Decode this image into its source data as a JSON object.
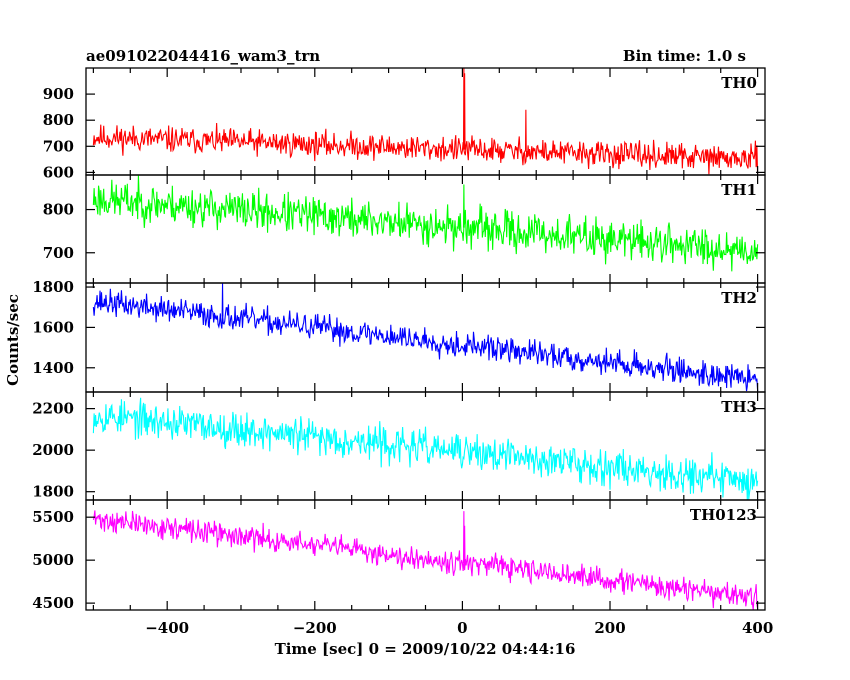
{
  "chart_data": {
    "type": "line",
    "title_left": "ae091022044416_wam3_trn",
    "title_right": "Bin time: 1.0 s",
    "xlabel": "Time [sec] 0 = 2009/10/22 04:44:16",
    "ylabel": "Counts/sec",
    "xlim": [
      -510,
      410
    ],
    "xticks": [
      -400,
      -200,
      0,
      200,
      400
    ],
    "grid": false,
    "panels": [
      {
        "name": "TH0",
        "color": "#ff0000",
        "ylim": [
          590,
          1000
        ],
        "yticks": [
          600,
          700,
          800,
          900
        ],
        "start": 735,
        "end": 650,
        "noise": 35,
        "seed": 11,
        "spikes": [
          {
            "x": 2,
            "y": 1000
          },
          {
            "x": 3,
            "y": 980
          },
          {
            "x": 86,
            "y": 840
          }
        ]
      },
      {
        "name": "TH1",
        "color": "#00ff00",
        "ylim": [
          630,
          880
        ],
        "yticks": [
          700,
          800
        ],
        "start": 825,
        "end": 705,
        "noise": 32,
        "seed": 23,
        "spikes": [
          {
            "x": 2,
            "y": 858
          }
        ]
      },
      {
        "name": "TH2",
        "color": "#0000ff",
        "ylim": [
          1280,
          1820
        ],
        "yticks": [
          1400,
          1600,
          1800
        ],
        "start": 1730,
        "end": 1340,
        "noise": 45,
        "seed": 37,
        "spikes": [
          {
            "x": -325,
            "y": 1820
          }
        ]
      },
      {
        "name": "TH3",
        "color": "#00ffff",
        "ylim": [
          1760,
          2280
        ],
        "yticks": [
          1800,
          2000,
          2200
        ],
        "start": 2170,
        "end": 1850,
        "noise": 60,
        "seed": 53,
        "spikes": []
      },
      {
        "name": "TH0123",
        "color": "#ff00ff",
        "ylim": [
          4420,
          5700
        ],
        "yticks": [
          4500,
          5000,
          5500
        ],
        "start": 5480,
        "end": 4560,
        "noise": 95,
        "seed": 71,
        "spikes": [
          {
            "x": 2,
            "y": 5570
          },
          {
            "x": 3,
            "y": 5400
          }
        ]
      }
    ]
  }
}
